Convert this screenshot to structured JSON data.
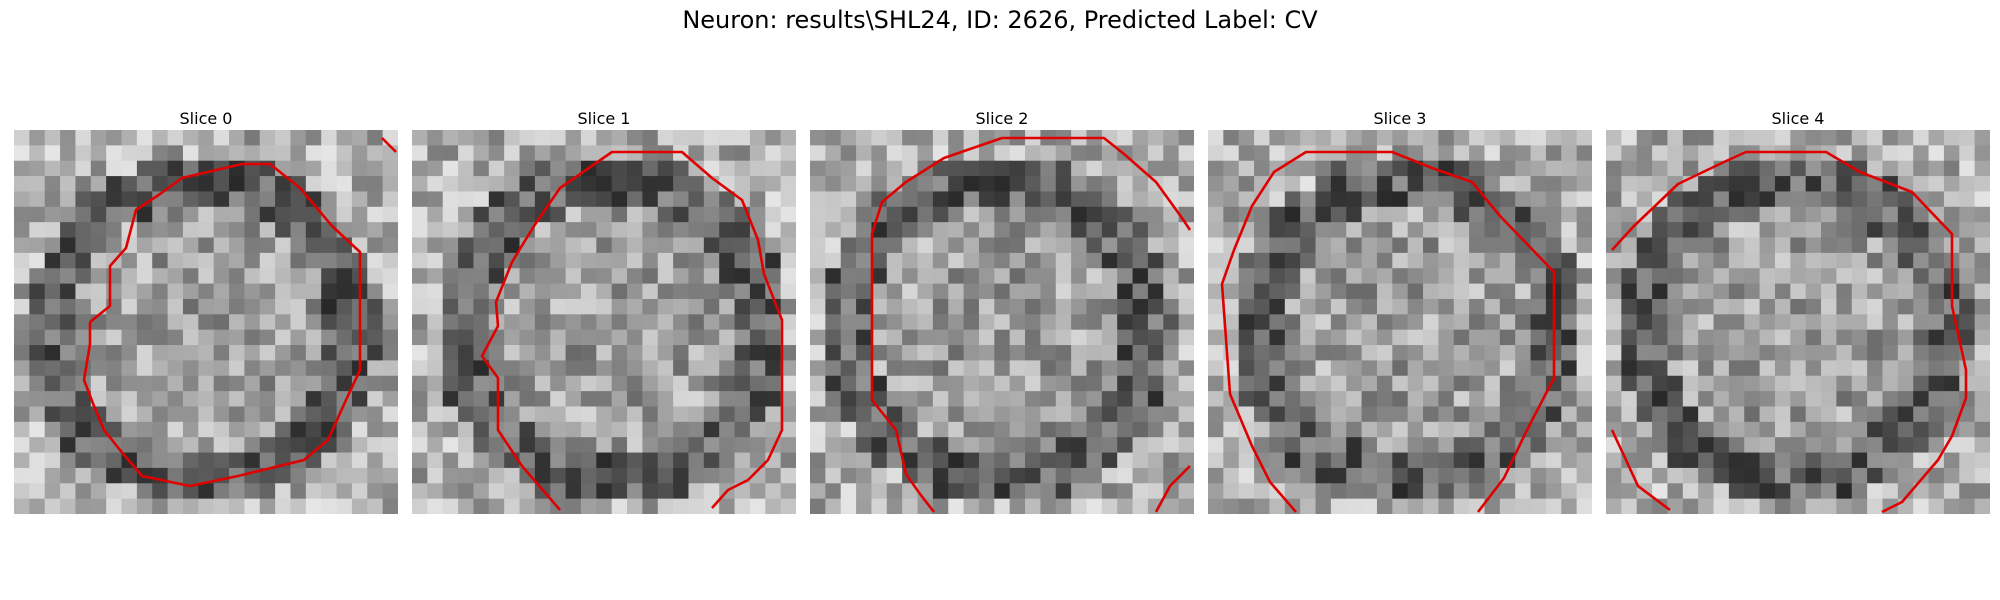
{
  "figure": {
    "title": "Neuron: results\\SHL24, ID: 2626, Predicted Label: CV"
  },
  "panels": [
    {
      "title": "Slice 0"
    },
    {
      "title": "Slice 1"
    },
    {
      "title": "Slice 2"
    },
    {
      "title": "Slice 3"
    },
    {
      "title": "Slice 4"
    }
  ],
  "colors": {
    "contour": "#e00000",
    "background": "#ffffff"
  }
}
